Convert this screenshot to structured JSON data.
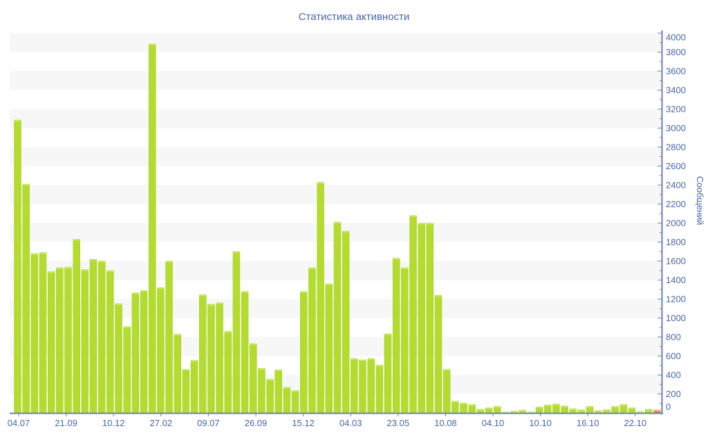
{
  "title": "Статистика активности",
  "chart_data": {
    "type": "bar",
    "title": "Статистика активности",
    "xlabel": "",
    "ylabel": "Сообщений",
    "ylim": [
      0,
      4000
    ],
    "y_tick_step": 200,
    "y_minor_tick_step": 100,
    "grid": "alternating horizontal stripe bands every 200 units",
    "legend_position": "none",
    "x_tick_labels": [
      "04.07",
      "21.09",
      "10.12",
      "27.02",
      "09.07",
      "26.09",
      "15.12",
      "04.03",
      "23.05",
      "10.08",
      "04.10",
      "10.10",
      "16.10",
      "22.10"
    ],
    "values": [
      3085,
      2410,
      1680,
      1690,
      1490,
      1530,
      1535,
      1830,
      1510,
      1620,
      1600,
      1500,
      1150,
      910,
      1265,
      1290,
      3885,
      1320,
      1600,
      830,
      460,
      555,
      1245,
      1145,
      1160,
      860,
      1700,
      1280,
      730,
      470,
      355,
      455,
      270,
      235,
      1280,
      1530,
      2430,
      1360,
      2010,
      1915,
      575,
      560,
      575,
      505,
      835,
      1630,
      1530,
      2080,
      2000,
      2000,
      1240,
      460,
      125,
      105,
      90,
      40,
      55,
      70,
      10,
      20,
      30,
      10,
      65,
      85,
      95,
      75,
      45,
      35,
      70,
      25,
      35,
      70,
      90,
      55,
      15,
      40,
      30
    ],
    "highlight_last_bar": true,
    "colors": {
      "bar_fill": "#b3dc2f",
      "bar_edge": "#a2cc25",
      "bar_cap": "#c9e85e",
      "last_bar_fill": "#e2762d",
      "last_bar_cap": "#f3a878",
      "axis_line": "#6e81a8",
      "tick_label": "#4766a6",
      "title": "#4766a6",
      "stripe": "#f7f7f7",
      "background": "#ffffff"
    }
  }
}
